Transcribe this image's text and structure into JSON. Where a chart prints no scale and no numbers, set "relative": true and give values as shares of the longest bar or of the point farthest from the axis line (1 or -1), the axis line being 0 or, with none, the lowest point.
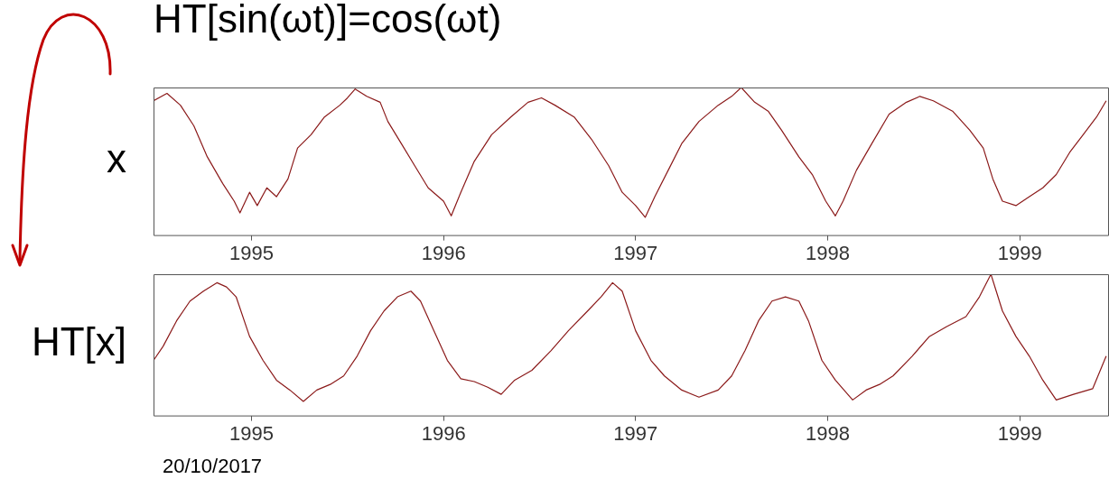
{
  "chart_data": [
    {
      "type": "line",
      "title": "HT[sin(ωt)]=cos(ωt)",
      "ylabel": "x",
      "relative": true,
      "marker": "none",
      "line_style": "solid",
      "xlim": [
        1994.49,
        1999.46
      ],
      "xticks": [
        1995,
        1996,
        1997,
        1998,
        1999
      ],
      "x": [
        1994.49,
        1994.56,
        1994.63,
        1994.7,
        1994.77,
        1994.85,
        1994.91,
        1994.94,
        1994.99,
        1995.03,
        1995.08,
        1995.13,
        1995.19,
        1995.24,
        1995.31,
        1995.38,
        1995.46,
        1995.5,
        1995.54,
        1995.6,
        1995.67,
        1995.71,
        1995.78,
        1995.85,
        1995.92,
        1996.0,
        1996.04,
        1996.09,
        1996.16,
        1996.25,
        1996.35,
        1996.44,
        1996.51,
        1996.58,
        1996.68,
        1996.77,
        1996.86,
        1996.93,
        1997.0,
        1997.05,
        1997.1,
        1997.17,
        1997.24,
        1997.33,
        1997.43,
        1997.5,
        1997.55,
        1997.62,
        1997.69,
        1997.76,
        1997.85,
        1997.92,
        1997.99,
        1998.04,
        1998.08,
        1998.15,
        1998.23,
        1998.32,
        1998.41,
        1998.48,
        1998.55,
        1998.65,
        1998.74,
        1998.81,
        1998.86,
        1998.91,
        1998.98,
        1999.05,
        1999.12,
        1999.19,
        1999.26,
        1999.33,
        1999.4,
        1999.45
      ],
      "series": [
        {
          "color": "#8b1a1a",
          "values": [
            0.91,
            0.96,
            0.88,
            0.74,
            0.53,
            0.35,
            0.23,
            0.15,
            0.29,
            0.2,
            0.32,
            0.26,
            0.38,
            0.59,
            0.68,
            0.8,
            0.88,
            0.93,
            0.99,
            0.94,
            0.9,
            0.77,
            0.62,
            0.47,
            0.32,
            0.23,
            0.13,
            0.29,
            0.5,
            0.68,
            0.8,
            0.9,
            0.93,
            0.88,
            0.8,
            0.65,
            0.47,
            0.29,
            0.2,
            0.12,
            0.26,
            0.44,
            0.62,
            0.77,
            0.88,
            0.94,
            1,
            0.9,
            0.84,
            0.71,
            0.53,
            0.41,
            0.23,
            0.13,
            0.23,
            0.44,
            0.62,
            0.82,
            0.9,
            0.94,
            0.91,
            0.84,
            0.71,
            0.59,
            0.38,
            0.23,
            0.2,
            0.26,
            0.32,
            0.41,
            0.56,
            0.68,
            0.8,
            0.91
          ]
        }
      ]
    },
    {
      "type": "line",
      "ylabel": "HT[x]",
      "relative": true,
      "marker": "none",
      "line_style": "solid",
      "xlim": [
        1994.49,
        1999.46
      ],
      "xticks": [
        1995,
        1996,
        1997,
        1998,
        1999
      ],
      "annotations": [
        "20/10/2017"
      ],
      "x": [
        1994.49,
        1994.54,
        1994.61,
        1994.68,
        1994.75,
        1994.82,
        1994.87,
        1994.92,
        1994.99,
        1995.06,
        1995.13,
        1995.2,
        1995.27,
        1995.34,
        1995.41,
        1995.48,
        1995.55,
        1995.62,
        1995.69,
        1995.76,
        1995.83,
        1995.88,
        1995.95,
        1996.02,
        1996.09,
        1996.16,
        1996.23,
        1996.3,
        1996.37,
        1996.46,
        1996.56,
        1996.65,
        1996.75,
        1996.82,
        1996.88,
        1996.93,
        1997.0,
        1997.08,
        1997.15,
        1997.24,
        1997.33,
        1997.43,
        1997.5,
        1997.57,
        1997.64,
        1997.71,
        1997.78,
        1997.85,
        1997.9,
        1997.97,
        1998.04,
        1998.13,
        1998.2,
        1998.27,
        1998.34,
        1998.44,
        1998.53,
        1998.62,
        1998.72,
        1998.79,
        1998.85,
        1998.91,
        1998.98,
        1999.05,
        1999.12,
        1999.19,
        1999.28,
        1999.38,
        1999.45
      ],
      "series": [
        {
          "color": "#8b1a1a",
          "values": [
            0.39,
            0.49,
            0.67,
            0.81,
            0.88,
            0.94,
            0.91,
            0.84,
            0.56,
            0.39,
            0.25,
            0.18,
            0.1,
            0.18,
            0.22,
            0.28,
            0.42,
            0.6,
            0.74,
            0.84,
            0.88,
            0.81,
            0.6,
            0.39,
            0.26,
            0.24,
            0.2,
            0.15,
            0.25,
            0.32,
            0.46,
            0.6,
            0.74,
            0.84,
            0.94,
            0.88,
            0.6,
            0.39,
            0.28,
            0.18,
            0.13,
            0.18,
            0.28,
            0.46,
            0.67,
            0.81,
            0.84,
            0.81,
            0.67,
            0.39,
            0.25,
            0.11,
            0.18,
            0.22,
            0.28,
            0.42,
            0.56,
            0.63,
            0.7,
            0.84,
            1,
            0.74,
            0.56,
            0.42,
            0.25,
            0.11,
            0.15,
            0.19,
            0.42
          ]
        }
      ]
    }
  ]
}
